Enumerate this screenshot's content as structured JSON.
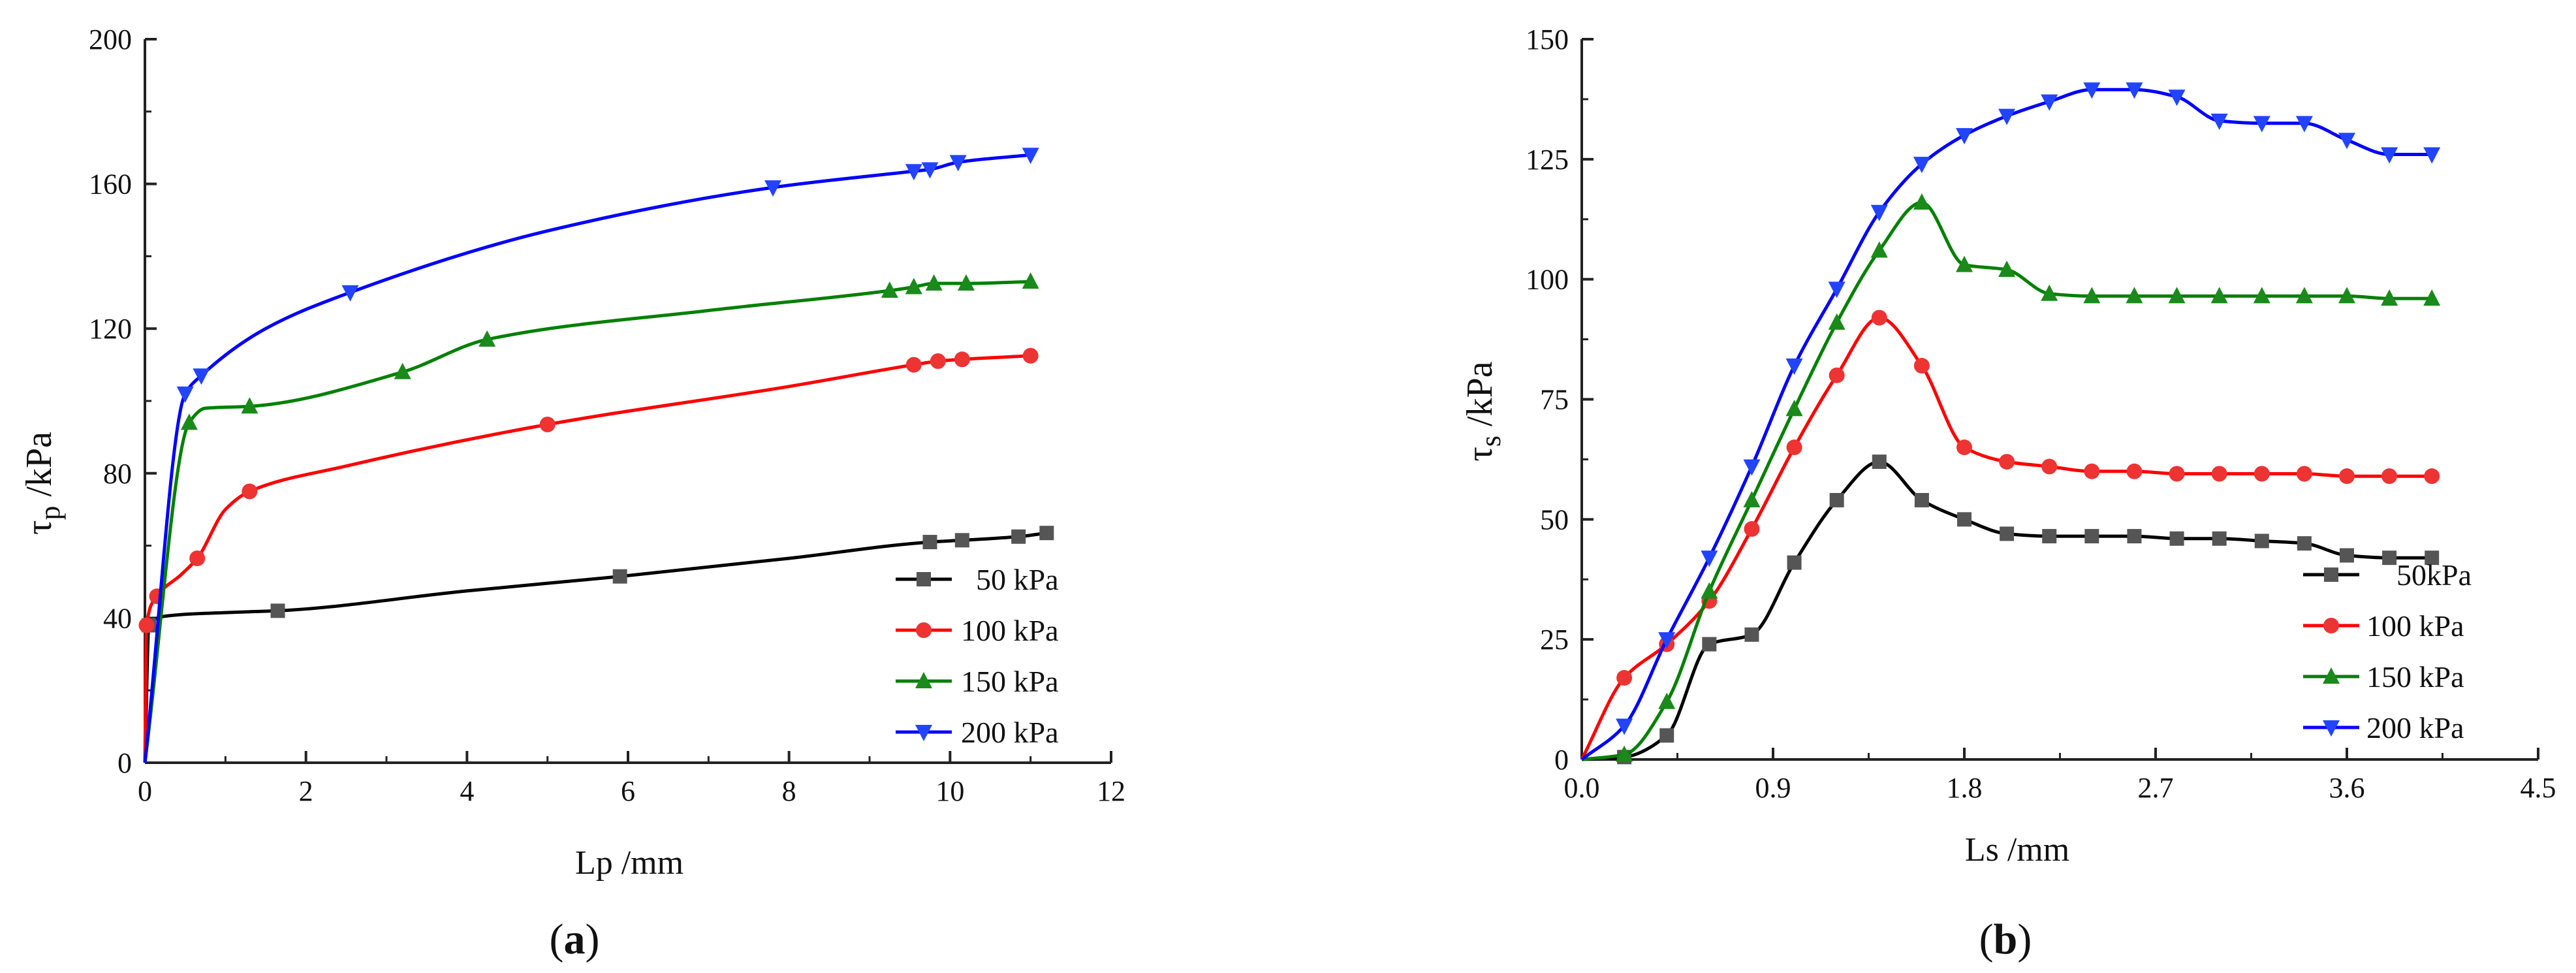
{
  "chart_data": [
    {
      "type": "line",
      "panel_label": "a",
      "xlabel": "Lp /mm",
      "ylabel_main": "τ",
      "ylabel_sub": "p",
      "ylabel_unit": " /kPa",
      "xlim": [
        0,
        12
      ],
      "ylim": [
        0,
        200
      ],
      "xticks": [
        "0",
        "2",
        "4",
        "6",
        "8",
        "10",
        "12"
      ],
      "yticks": [
        "0",
        "40",
        "80",
        "120",
        "160",
        "200"
      ],
      "legend_position": "bottom-right",
      "series": [
        {
          "name": "50 kPa",
          "color": "#000000",
          "marker_color": "#555555",
          "marker": "square",
          "x": [
            0,
            0.05,
            0.25,
            1.0,
            1.65,
            4.0,
            5.9,
            8.0,
            9.75,
            10.15,
            10.85,
            11.2
          ],
          "y": [
            0,
            38,
            40.5,
            41.5,
            42,
            47.5,
            51.5,
            56.5,
            61,
            61.5,
            62.5,
            63.5
          ],
          "marked": [
            false,
            true,
            false,
            false,
            true,
            false,
            true,
            false,
            true,
            true,
            true,
            true
          ]
        },
        {
          "name": "100 kPa",
          "color": "#ff0000",
          "marker_color": "#ee3333",
          "marker": "circle",
          "x": [
            0,
            0.02,
            0.15,
            0.45,
            0.65,
            1.0,
            1.3,
            2.5,
            5.0,
            8.0,
            9.55,
            9.85,
            10.15,
            11.0
          ],
          "y": [
            0,
            38,
            46,
            52,
            56.5,
            70,
            75,
            82,
            93.5,
            104,
            110,
            111,
            111.5,
            112.5
          ],
          "marked": [
            false,
            true,
            true,
            false,
            true,
            false,
            true,
            false,
            true,
            false,
            true,
            true,
            true,
            true
          ]
        },
        {
          "name": "150 kPa",
          "color": "#008000",
          "marker_color": "#1a8a1a",
          "marker": "triangle-up",
          "x": [
            0,
            0.55,
            0.75,
            1.3,
            3.2,
            4.25,
            7.0,
            9.25,
            9.55,
            9.8,
            10.2,
            11.0
          ],
          "y": [
            0,
            94,
            98,
            98.5,
            108,
            117,
            125,
            130.5,
            131.5,
            132.5,
            132.5,
            133
          ],
          "marked": [
            false,
            true,
            false,
            true,
            true,
            true,
            false,
            true,
            true,
            true,
            true,
            true
          ]
        },
        {
          "name": "200 kPa",
          "color": "#0000ff",
          "marker_color": "#2244ff",
          "marker": "triangle-down",
          "x": [
            0,
            0.5,
            0.7,
            1.5,
            2.55,
            5.0,
            7.8,
            9.55,
            9.75,
            10.1,
            11.0
          ],
          "y": [
            0,
            102,
            107,
            120,
            130,
            147,
            159,
            163.5,
            164,
            166,
            168
          ],
          "marked": [
            false,
            true,
            true,
            false,
            true,
            false,
            true,
            true,
            true,
            true,
            true
          ]
        }
      ]
    },
    {
      "type": "line",
      "panel_label": "b",
      "xlabel": "Ls /mm",
      "ylabel_main": "τ",
      "ylabel_sub": "s",
      "ylabel_unit": " /kPa",
      "xlim": [
        0,
        4.5
      ],
      "ylim": [
        0,
        150
      ],
      "xticks": [
        "0.0",
        "0.9",
        "1.8",
        "2.7",
        "3.6",
        "4.5"
      ],
      "yticks": [
        "0",
        "25",
        "50",
        "75",
        "100",
        "125",
        "150"
      ],
      "legend_position": "bottom-right",
      "series": [
        {
          "name": "50kPa",
          "color": "#000000",
          "marker_color": "#555555",
          "marker": "square",
          "x": [
            0,
            0.2,
            0.4,
            0.6,
            0.8,
            1.0,
            1.2,
            1.4,
            1.6,
            1.8,
            2.0,
            2.2,
            2.4,
            2.6,
            2.8,
            3.0,
            3.2,
            3.4,
            3.6,
            3.8,
            4.0
          ],
          "y": [
            0,
            0.5,
            5,
            24,
            26,
            41,
            54,
            62,
            54,
            50,
            47,
            46.5,
            46.5,
            46.5,
            46,
            46,
            45.5,
            45,
            42.5,
            42,
            42
          ],
          "marked": [
            false,
            true,
            true,
            true,
            true,
            true,
            true,
            true,
            true,
            true,
            true,
            true,
            true,
            true,
            true,
            true,
            true,
            true,
            true,
            true,
            true
          ]
        },
        {
          "name": "100 kPa",
          "color": "#ff0000",
          "marker_color": "#ee3333",
          "marker": "circle",
          "x": [
            0,
            0.2,
            0.4,
            0.6,
            0.8,
            1.0,
            1.2,
            1.4,
            1.6,
            1.8,
            2.0,
            2.2,
            2.4,
            2.6,
            2.8,
            3.0,
            3.2,
            3.4,
            3.6,
            3.8,
            4.0
          ],
          "y": [
            0,
            17,
            24,
            33,
            48,
            65,
            80,
            92,
            82,
            65,
            62,
            61,
            60,
            60,
            59.5,
            59.5,
            59.5,
            59.5,
            59,
            59,
            59
          ],
          "marked": [
            false,
            true,
            true,
            true,
            true,
            true,
            true,
            true,
            true,
            true,
            true,
            true,
            true,
            true,
            true,
            true,
            true,
            true,
            true,
            true,
            true
          ]
        },
        {
          "name": "150 kPa",
          "color": "#008000",
          "marker_color": "#1a8a1a",
          "marker": "triangle-up",
          "x": [
            0,
            0.2,
            0.4,
            0.6,
            0.8,
            1.0,
            1.2,
            1.4,
            1.6,
            1.8,
            2.0,
            2.2,
            2.4,
            2.6,
            2.8,
            3.0,
            3.2,
            3.4,
            3.6,
            3.8,
            4.0
          ],
          "y": [
            0,
            1,
            12,
            35,
            54,
            73,
            91,
            106,
            116,
            103,
            102,
            97,
            96.5,
            96.5,
            96.5,
            96.5,
            96.5,
            96.5,
            96.5,
            96,
            96
          ],
          "marked": [
            false,
            true,
            true,
            true,
            true,
            true,
            true,
            true,
            true,
            true,
            true,
            true,
            true,
            true,
            true,
            true,
            true,
            true,
            true,
            true,
            true
          ]
        },
        {
          "name": "200 kPa",
          "color": "#0000ff",
          "marker_color": "#2244ff",
          "marker": "triangle-down",
          "x": [
            0,
            0.2,
            0.4,
            0.6,
            0.8,
            1.0,
            1.2,
            1.4,
            1.6,
            1.8,
            2.0,
            2.2,
            2.4,
            2.6,
            2.8,
            3.0,
            3.2,
            3.4,
            3.6,
            3.8,
            4.0
          ],
          "y": [
            0,
            7,
            25,
            42,
            61,
            82,
            98,
            114,
            124,
            130,
            134,
            137,
            139.5,
            139.5,
            138,
            133,
            132.5,
            132.5,
            129,
            126,
            126
          ],
          "marked": [
            false,
            true,
            true,
            true,
            true,
            true,
            true,
            true,
            true,
            true,
            true,
            true,
            true,
            true,
            true,
            true,
            true,
            true,
            true,
            true,
            true
          ]
        }
      ]
    }
  ]
}
